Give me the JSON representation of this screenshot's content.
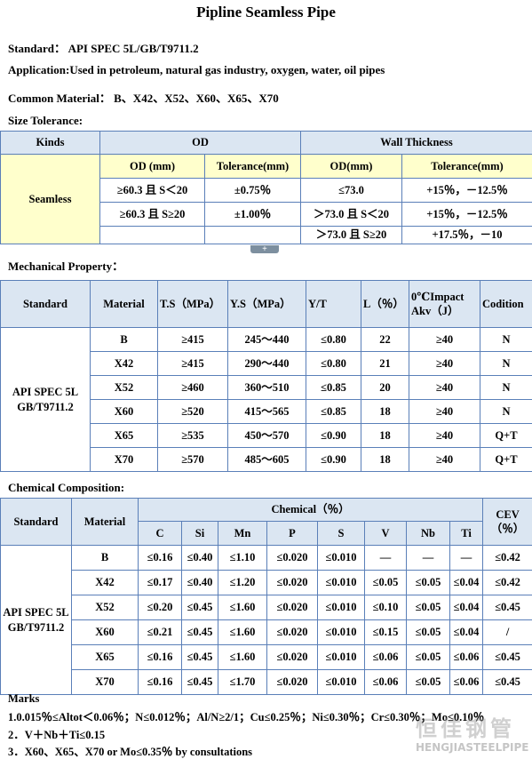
{
  "title": "Pipline Seamless Pipe",
  "info": [
    {
      "label": "Standard：",
      "value": "API SPEC 5L/GB/T9711.2"
    },
    {
      "label": "Application:",
      "value": "Used in petroleum, natural gas industry, oxygen, water, oil pipes"
    },
    {
      "label": "Common Material：",
      "value": "B、X42、X52、X60、X65、X70"
    }
  ],
  "size_tolerance": {
    "heading": "Size Tolerance:",
    "header": [
      "Kinds",
      "OD",
      "Wall Thickness"
    ],
    "subheader": [
      "OD (mm)",
      "Tolerance(mm)",
      "OD(mm)",
      "Tolerance(mm)"
    ],
    "kind": "Seamless",
    "rows": [
      [
        "≥60.3 且 S＜20",
        "±0.75％",
        "≤73.0",
        "+15％，－12.5％"
      ],
      [
        "≥60.3 且 S≥20",
        "±1.00％",
        "＞73.0 且 S＜20",
        "+15％，－12.5％"
      ],
      [
        null,
        null,
        "＞73.0 且 S≥20",
        "+17.5％，－10"
      ]
    ]
  },
  "tab_icon": "+",
  "mechanical": {
    "heading": "Mechanical Property：",
    "header": [
      "Standard",
      "Material",
      "T.S（MPa）",
      "Y.S（MPa）",
      "Y/T",
      "L（％）",
      "0℃Impact Akv（J）",
      "Codition"
    ],
    "standard": "API SPEC 5L GB/T9711.2",
    "rows": [
      [
        "B",
        "≥415",
        "245～440",
        "≤0.80",
        "22",
        "≥40",
        "N"
      ],
      [
        "X42",
        "≥415",
        "290～440",
        "≤0.80",
        "21",
        "≥40",
        "N"
      ],
      [
        "X52",
        "≥460",
        "360～510",
        "≤0.85",
        "20",
        "≥40",
        "N"
      ],
      [
        "X60",
        "≥520",
        "415～565",
        "≤0.85",
        "18",
        "≥40",
        "N"
      ],
      [
        "X65",
        "≥535",
        "450～570",
        "≤0.90",
        "18",
        "≥40",
        "Q+T"
      ],
      [
        "X70",
        "≥570",
        "485～605",
        "≤0.90",
        "18",
        "≥40",
        "Q+T"
      ]
    ]
  },
  "chemical": {
    "heading": "Chemical Composition:",
    "header": [
      "Standard",
      "Material",
      "Chemical（％）",
      "CEV（％）"
    ],
    "elements": [
      "C",
      "Si",
      "Mn",
      "P",
      "S",
      "V",
      "Nb",
      "Ti"
    ],
    "standard": "API SPEC 5L GB/T9711.2",
    "rows": [
      [
        "B",
        "≤0.16",
        "≤0.40",
        "≤1.10",
        "≤0.020",
        "≤0.010",
        "—",
        "—",
        "—",
        "≤0.42"
      ],
      [
        "X42",
        "≤0.17",
        "≤0.40",
        "≤1.20",
        "≤0.020",
        "≤0.010",
        "≤0.05",
        "≤0.05",
        "≤0.04",
        "≤0.42"
      ],
      [
        "X52",
        "≤0.20",
        "≤0.45",
        "≤1.60",
        "≤0.020",
        "≤0.010",
        "≤0.10",
        "≤0.05",
        "≤0.04",
        "≤0.45"
      ],
      [
        "X60",
        "≤0.21",
        "≤0.45",
        "≤1.60",
        "≤0.020",
        "≤0.010",
        "≤0.15",
        "≤0.05",
        "≤0.04",
        "/"
      ],
      [
        "X65",
        "≤0.16",
        "≤0.45",
        "≤1.60",
        "≤0.020",
        "≤0.010",
        "≤0.06",
        "≤0.05",
        "≤0.06",
        "≤0.45"
      ],
      [
        "X70",
        "≤0.16",
        "≤0.45",
        "≤1.70",
        "≤0.020",
        "≤0.010",
        "≤0.06",
        "≤0.05",
        "≤0.06",
        "≤0.45"
      ]
    ]
  },
  "marks": {
    "title": "Marks",
    "items": [
      "1.0.015％≤Altot＜0.06％；N≤0.012％；Al/N≥2/1；Cu≤0.25％；Ni≤0.30％；Cr≤0.30％；Mo≤0.10％",
      "2．V＋Nb＋Ti≤0.15",
      "3．X60、X65、X70 or Mo≤0.35％ by consultations"
    ]
  },
  "watermark": {
    "cn": "恒佳钢管",
    "en": "HENGJIASTEELPIPE"
  }
}
